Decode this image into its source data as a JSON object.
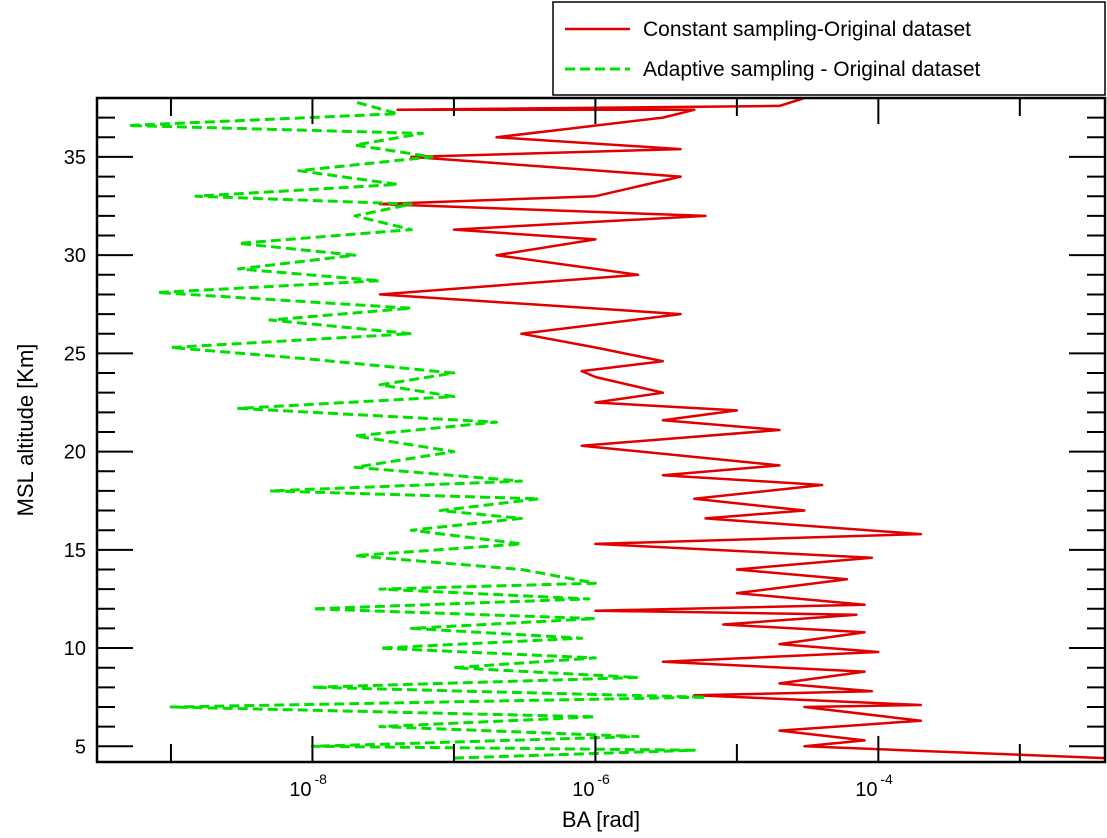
{
  "chart_data": {
    "type": "line",
    "xlabel": "BA [rad]",
    "ylabel": "MSL altitude [Km]",
    "x_scale": "log",
    "xlim": [
      3e-10,
      0.004
    ],
    "ylim": [
      4.2,
      38
    ],
    "x_ticks": [
      {
        "value": 1e-08,
        "base": "10",
        "exp": "-8"
      },
      {
        "value": 1e-06,
        "base": "10",
        "exp": "-6"
      },
      {
        "value": 0.0001,
        "base": "10",
        "exp": "-4"
      }
    ],
    "y_ticks": [
      5,
      10,
      15,
      20,
      25,
      30,
      35
    ],
    "grid": false,
    "legend_position": "top-right",
    "series": [
      {
        "name": "Constant sampling-Original dataset",
        "color": "#e00000",
        "style": "solid",
        "points": [
          [
            0.004,
            4.4
          ],
          [
            0.00015,
            4.8
          ],
          [
            3e-05,
            5.0
          ],
          [
            8e-05,
            5.3
          ],
          [
            2e-05,
            5.8
          ],
          [
            0.0002,
            6.3
          ],
          [
            3e-05,
            7.0
          ],
          [
            0.0002,
            7.1
          ],
          [
            5e-06,
            7.6
          ],
          [
            9e-05,
            7.8
          ],
          [
            2e-05,
            8.2
          ],
          [
            8e-05,
            8.8
          ],
          [
            3e-06,
            9.3
          ],
          [
            0.0001,
            9.8
          ],
          [
            2e-05,
            10.2
          ],
          [
            8e-05,
            10.8
          ],
          [
            8e-06,
            11.2
          ],
          [
            7e-05,
            11.7
          ],
          [
            1e-06,
            11.9
          ],
          [
            8e-05,
            12.2
          ],
          [
            1e-05,
            12.8
          ],
          [
            6e-05,
            13.5
          ],
          [
            1e-05,
            14.0
          ],
          [
            9e-05,
            14.6
          ],
          [
            1e-06,
            15.3
          ],
          [
            0.0002,
            15.8
          ],
          [
            6e-06,
            16.6
          ],
          [
            3e-05,
            17.0
          ],
          [
            5e-06,
            17.6
          ],
          [
            4e-05,
            18.3
          ],
          [
            3e-06,
            18.8
          ],
          [
            2e-05,
            19.3
          ],
          [
            8e-07,
            20.3
          ],
          [
            2e-05,
            21.1
          ],
          [
            3e-06,
            21.6
          ],
          [
            1e-05,
            22.1
          ],
          [
            1e-06,
            22.5
          ],
          [
            3e-06,
            23.0
          ],
          [
            1e-06,
            23.8
          ],
          [
            8e-07,
            24.1
          ],
          [
            3e-06,
            24.6
          ],
          [
            1e-06,
            25.3
          ],
          [
            3e-07,
            26.0
          ],
          [
            4e-06,
            27.0
          ],
          [
            3e-08,
            28.0
          ],
          [
            2e-06,
            29.0
          ],
          [
            2e-07,
            30.0
          ],
          [
            1e-06,
            30.8
          ],
          [
            1e-07,
            31.3
          ],
          [
            6e-06,
            32.0
          ],
          [
            3e-08,
            32.6
          ],
          [
            1e-06,
            33.0
          ],
          [
            4e-06,
            34.0
          ],
          [
            5e-08,
            35.0
          ],
          [
            4e-06,
            35.4
          ],
          [
            2e-07,
            36.0
          ],
          [
            3e-06,
            37.0
          ],
          [
            5e-06,
            37.4
          ],
          [
            4e-08,
            37.4
          ],
          [
            2e-05,
            37.6
          ],
          [
            3e-05,
            38.0
          ]
        ]
      },
      {
        "name": "Adaptive sampling - Original dataset",
        "color": "#00e000",
        "style": "dashed",
        "points": [
          [
            1e-07,
            4.4
          ],
          [
            5e-06,
            4.8
          ],
          [
            1e-08,
            5.0
          ],
          [
            2e-06,
            5.5
          ],
          [
            3e-08,
            6.0
          ],
          [
            1e-06,
            6.5
          ],
          [
            1e-09,
            7.0
          ],
          [
            6e-06,
            7.5
          ],
          [
            1e-08,
            8.0
          ],
          [
            2e-06,
            8.5
          ],
          [
            1e-07,
            9.0
          ],
          [
            1e-06,
            9.5
          ],
          [
            3e-08,
            10.0
          ],
          [
            8e-07,
            10.5
          ],
          [
            5e-08,
            11.0
          ],
          [
            1e-06,
            11.5
          ],
          [
            1e-08,
            12.0
          ],
          [
            9e-07,
            12.5
          ],
          [
            3e-08,
            13.0
          ],
          [
            1e-06,
            13.3
          ],
          [
            3e-07,
            14.0
          ],
          [
            2e-08,
            14.7
          ],
          [
            3e-07,
            15.3
          ],
          [
            5e-08,
            16.0
          ],
          [
            3e-07,
            16.6
          ],
          [
            8e-08,
            17.0
          ],
          [
            4e-07,
            17.6
          ],
          [
            5e-09,
            18.0
          ],
          [
            3e-07,
            18.5
          ],
          [
            2e-08,
            19.2
          ],
          [
            1e-07,
            20.0
          ],
          [
            2e-08,
            20.8
          ],
          [
            2e-07,
            21.5
          ],
          [
            3e-09,
            22.2
          ],
          [
            1e-07,
            22.8
          ],
          [
            3e-08,
            23.4
          ],
          [
            1e-07,
            24.0
          ],
          [
            1e-08,
            24.7
          ],
          [
            1e-09,
            25.3
          ],
          [
            5e-08,
            26.0
          ],
          [
            5e-09,
            26.7
          ],
          [
            5e-08,
            27.3
          ],
          [
            8e-10,
            28.1
          ],
          [
            3e-08,
            28.7
          ],
          [
            3e-09,
            29.3
          ],
          [
            2e-08,
            30.0
          ],
          [
            3e-09,
            30.6
          ],
          [
            5e-08,
            31.3
          ],
          [
            2e-08,
            32.0
          ],
          [
            5e-08,
            32.6
          ],
          [
            1.5e-09,
            33.0
          ],
          [
            4e-08,
            33.6
          ],
          [
            8e-09,
            34.3
          ],
          [
            7e-08,
            35.0
          ],
          [
            2e-08,
            35.6
          ],
          [
            6e-08,
            36.2
          ],
          [
            5e-10,
            36.6
          ],
          [
            4e-08,
            37.2
          ],
          [
            2e-08,
            37.8
          ]
        ]
      }
    ]
  }
}
